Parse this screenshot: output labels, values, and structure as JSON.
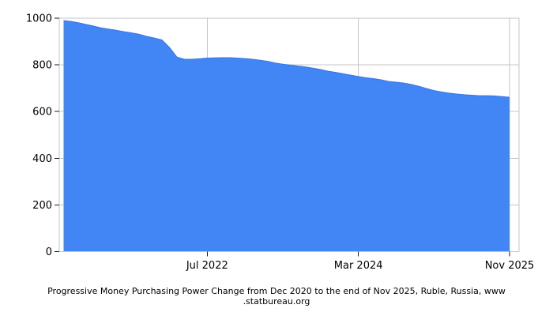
{
  "chart_data": {
    "type": "area",
    "title": "Progressive Money Purchasing Power Change from Dec 2020 to the end of Nov 2025, Ruble, Russia, www.statbureau.org",
    "title_lines": [
      "Progressive Money Purchasing Power Change from Dec 2020 to the end of Nov 2025, Ruble, Russia, www",
      ".statbureau.org"
    ],
    "xlabel": "",
    "ylabel": "",
    "ylim": [
      0,
      1000
    ],
    "y_ticks": [
      0,
      200,
      400,
      600,
      800,
      1000
    ],
    "x_ticks": [
      {
        "index": 19,
        "label": "Jul 2022"
      },
      {
        "index": 39,
        "label": "Mar 2024"
      },
      {
        "index": 59,
        "label": "Nov 2025"
      }
    ],
    "grid": true,
    "legend": "none",
    "x": [
      "Dec 2020",
      "Jan 2021",
      "Feb 2021",
      "Mar 2021",
      "Apr 2021",
      "May 2021",
      "Jun 2021",
      "Jul 2021",
      "Aug 2021",
      "Sep 2021",
      "Oct 2021",
      "Nov 2021",
      "Dec 2021",
      "Jan 2022",
      "Feb 2022",
      "Mar 2022",
      "Apr 2022",
      "May 2022",
      "Jun 2022",
      "Jul 2022",
      "Aug 2022",
      "Sep 2022",
      "Oct 2022",
      "Nov 2022",
      "Dec 2022",
      "Jan 2023",
      "Feb 2023",
      "Mar 2023",
      "Apr 2023",
      "May 2023",
      "Jun 2023",
      "Jul 2023",
      "Aug 2023",
      "Sep 2023",
      "Oct 2023",
      "Nov 2023",
      "Dec 2023",
      "Jan 2024",
      "Feb 2024",
      "Mar 2024",
      "Apr 2024",
      "May 2024",
      "Jun 2024",
      "Jul 2024",
      "Aug 2024",
      "Sep 2024",
      "Oct 2024",
      "Nov 2024",
      "Dec 2024",
      "Jan 2025",
      "Feb 2025",
      "Mar 2025",
      "Apr 2025",
      "May 2025",
      "Jun 2025",
      "Jul 2025",
      "Aug 2025",
      "Sep 2025",
      "Oct 2025",
      "Nov 2025"
    ],
    "values": [
      990,
      986,
      980,
      973,
      966,
      958,
      953,
      948,
      942,
      937,
      931,
      922,
      915,
      907,
      875,
      833,
      824,
      824,
      826,
      829,
      830,
      831,
      831,
      829,
      827,
      824,
      820,
      815,
      808,
      803,
      799,
      795,
      791,
      786,
      780,
      773,
      768,
      762,
      756,
      750,
      745,
      741,
      736,
      729,
      726,
      722,
      716,
      708,
      699,
      690,
      684,
      679,
      675,
      672,
      670,
      668,
      668,
      667,
      664,
      661
    ],
    "colors": {
      "area_fill": "#4285f4",
      "area_edge": "#3a76e0",
      "grid": "#c6c6c6",
      "tick": "#1a1a1a",
      "text": "#000000",
      "background": "#ffffff"
    }
  }
}
